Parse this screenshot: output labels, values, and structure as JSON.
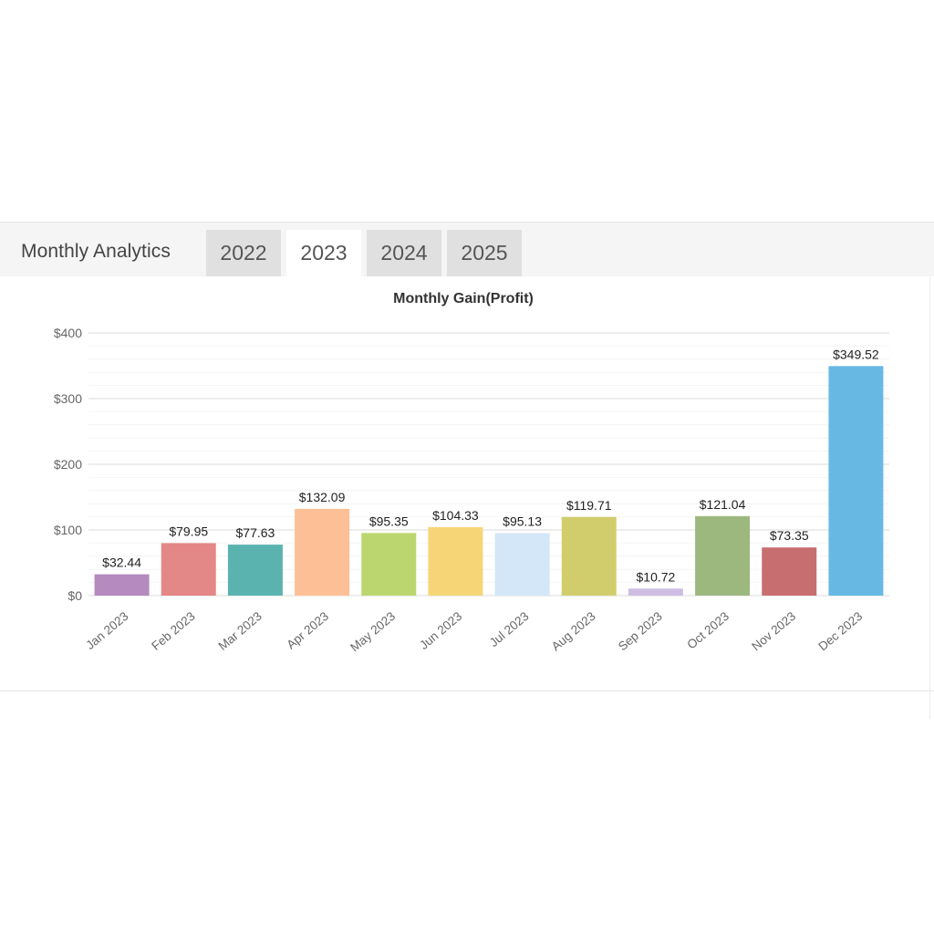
{
  "header": {
    "title": "Monthly Analytics",
    "tabs": [
      {
        "label": "2022",
        "active": false
      },
      {
        "label": "2023",
        "active": true
      },
      {
        "label": "2024",
        "active": false
      },
      {
        "label": "2025",
        "active": false
      }
    ]
  },
  "colors": {
    "tab_inactive": "#e0e0e0",
    "tab_active": "#ffffff",
    "tabbar_bg": "#f5f5f5"
  },
  "chart_data": {
    "type": "bar",
    "title": "Monthly Gain(Profit)",
    "xlabel": "",
    "ylabel": "",
    "ylim": [
      0,
      400
    ],
    "y_ticks": [
      "$0",
      "$100",
      "$200",
      "$300",
      "$400"
    ],
    "grid": true,
    "categories": [
      "Jan 2023",
      "Feb 2023",
      "Mar 2023",
      "Apr 2023",
      "May 2023",
      "Jun 2023",
      "Jul 2023",
      "Aug 2023",
      "Sep 2023",
      "Oct 2023",
      "Nov 2023",
      "Dec 2023"
    ],
    "values": [
      32.44,
      79.95,
      77.63,
      132.09,
      95.35,
      104.33,
      95.13,
      119.71,
      10.72,
      121.04,
      73.35,
      349.52
    ],
    "value_labels": [
      "$32.44",
      "$79.95",
      "$77.63",
      "$132.09",
      "$95.35",
      "$104.33",
      "$95.13",
      "$119.71",
      "$10.72",
      "$121.04",
      "$73.35",
      "$349.52"
    ],
    "bar_colors": [
      "#b48abf",
      "#e38886",
      "#5bb3b0",
      "#fdbf96",
      "#bcd66f",
      "#f6d577",
      "#d3e7f8",
      "#d2cd6c",
      "#cdbde3",
      "#9db87f",
      "#c76e70",
      "#67b9e4"
    ]
  }
}
